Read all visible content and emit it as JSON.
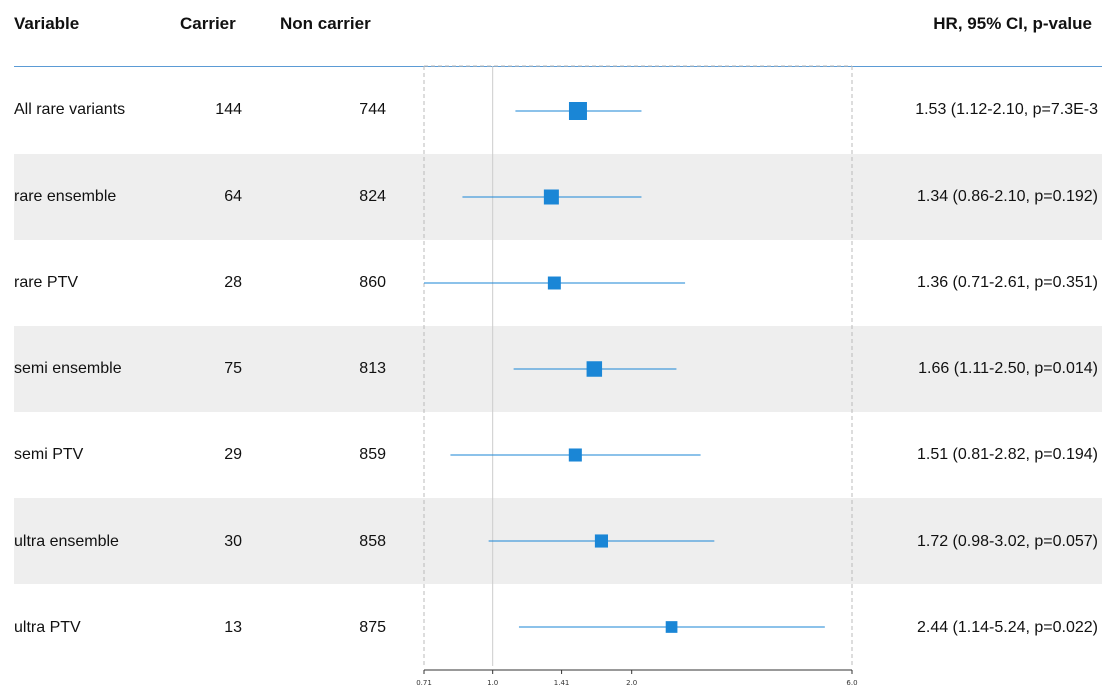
{
  "headers": {
    "variable": "Variable",
    "carrier": "Carrier",
    "non_carrier": "Non carrier",
    "hr": "HR, 95% CI, p-value"
  },
  "colors": {
    "marker": "#1a86d6",
    "line": "#1a86d6",
    "band": "#eeeeee",
    "header_line": "#5b9bd5"
  },
  "rows": [
    {
      "variable": "All rare variants",
      "carrier": "144",
      "non_carrier": "744",
      "hr_text": "1.53 (1.12-2.10, p=7.3E-3"
    },
    {
      "variable": "rare ensemble",
      "carrier": "64",
      "non_carrier": "824",
      "hr_text": "1.34 (0.86-2.10, p=0.192)"
    },
    {
      "variable": "rare PTV",
      "carrier": "28",
      "non_carrier": "860",
      "hr_text": "1.36 (0.71-2.61, p=0.351)"
    },
    {
      "variable": "semi ensemble",
      "carrier": "75",
      "non_carrier": "813",
      "hr_text": "1.66 (1.11-2.50, p=0.014)"
    },
    {
      "variable": "semi PTV",
      "carrier": "29",
      "non_carrier": "859",
      "hr_text": "1.51 (0.81-2.82, p=0.194)"
    },
    {
      "variable": "ultra ensemble",
      "carrier": "30",
      "non_carrier": "858",
      "hr_text": "1.72 (0.98-3.02, p=0.057)"
    },
    {
      "variable": "ultra PTV",
      "carrier": "13",
      "non_carrier": "875",
      "hr_text": "2.44 (1.14-5.24, p=0.022)"
    }
  ],
  "chart_data": {
    "type": "forest",
    "x_scale": "log",
    "xlim": [
      0.71,
      6.0
    ],
    "x_ticks": [
      0.71,
      1.0,
      1.41,
      2.0,
      6.0
    ],
    "x_tick_labels": [
      "0.71",
      "1.0",
      "1.41",
      "2.0",
      "6.0"
    ],
    "reference_line": 1.0,
    "series": [
      {
        "label": "All rare variants",
        "hr": 1.53,
        "lo": 1.12,
        "hi": 2.1,
        "weight": 144
      },
      {
        "label": "rare ensemble",
        "hr": 1.34,
        "lo": 0.86,
        "hi": 2.1,
        "weight": 64
      },
      {
        "label": "rare PTV",
        "hr": 1.36,
        "lo": 0.71,
        "hi": 2.61,
        "weight": 28
      },
      {
        "label": "semi ensemble",
        "hr": 1.66,
        "lo": 1.11,
        "hi": 2.5,
        "weight": 75
      },
      {
        "label": "semi PTV",
        "hr": 1.51,
        "lo": 0.81,
        "hi": 2.82,
        "weight": 29
      },
      {
        "label": "ultra ensemble",
        "hr": 1.72,
        "lo": 0.98,
        "hi": 3.02,
        "weight": 30
      },
      {
        "label": "ultra PTV",
        "hr": 2.44,
        "lo": 1.14,
        "hi": 5.24,
        "weight": 13
      }
    ]
  }
}
